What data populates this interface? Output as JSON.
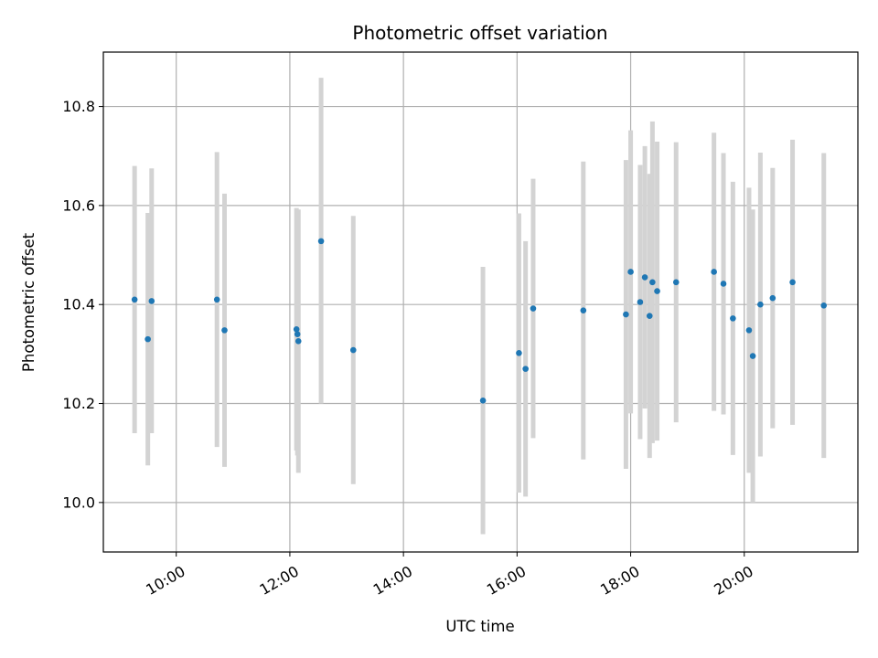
{
  "chart_data": {
    "type": "scatter",
    "title": "Photometric offset variation",
    "xlabel": "UTC time",
    "ylabel": "Photometric offset",
    "x_unit": "hours (UTC)",
    "xlim": [
      "08:43",
      "22:00"
    ],
    "ylim": [
      9.9,
      10.91
    ],
    "x_ticks": [
      "10:00",
      "12:00",
      "14:00",
      "16:00",
      "18:00",
      "20:00"
    ],
    "y_ticks": [
      "10.0",
      "10.2",
      "10.4",
      "10.6",
      "10.8"
    ],
    "grid": true,
    "colors": {
      "points": "#1f77b4",
      "errorbars": "#d3d3d3",
      "grid": "#b0b0b0"
    },
    "points": [
      {
        "x": "09:16",
        "y": 10.41,
        "err_low": 10.14,
        "err_high": 10.68
      },
      {
        "x": "09:30",
        "y": 10.33,
        "err_low": 10.075,
        "err_high": 10.585
      },
      {
        "x": "09:34",
        "y": 10.407,
        "err_low": 10.14,
        "err_high": 10.675
      },
      {
        "x": "10:43",
        "y": 10.41,
        "err_low": 10.112,
        "err_high": 10.708
      },
      {
        "x": "10:51",
        "y": 10.348,
        "err_low": 10.072,
        "err_high": 10.624
      },
      {
        "x": "12:07",
        "y": 10.35,
        "err_low": 10.105,
        "err_high": 10.595
      },
      {
        "x": "12:08",
        "y": 10.34,
        "err_low": 10.095,
        "err_high": 10.585
      },
      {
        "x": "12:09",
        "y": 10.326,
        "err_low": 10.06,
        "err_high": 10.592
      },
      {
        "x": "12:33",
        "y": 10.528,
        "err_low": 10.2,
        "err_high": 10.858
      },
      {
        "x": "13:07",
        "y": 10.308,
        "err_low": 10.037,
        "err_high": 10.579
      },
      {
        "x": "15:24",
        "y": 10.206,
        "err_low": 9.936,
        "err_high": 10.476
      },
      {
        "x": "16:02",
        "y": 10.302,
        "err_low": 10.02,
        "err_high": 10.584
      },
      {
        "x": "16:09",
        "y": 10.27,
        "err_low": 10.012,
        "err_high": 10.528
      },
      {
        "x": "16:17",
        "y": 10.392,
        "err_low": 10.13,
        "err_high": 10.654
      },
      {
        "x": "17:10",
        "y": 10.388,
        "err_low": 10.087,
        "err_high": 10.689
      },
      {
        "x": "17:55",
        "y": 10.38,
        "err_low": 10.068,
        "err_high": 10.692
      },
      {
        "x": "18:00",
        "y": 10.466,
        "err_low": 10.18,
        "err_high": 10.752
      },
      {
        "x": "18:10",
        "y": 10.405,
        "err_low": 10.128,
        "err_high": 10.682
      },
      {
        "x": "18:15",
        "y": 10.455,
        "err_low": 10.19,
        "err_high": 10.72
      },
      {
        "x": "18:20",
        "y": 10.377,
        "err_low": 10.09,
        "err_high": 10.664
      },
      {
        "x": "18:23",
        "y": 10.445,
        "err_low": 10.12,
        "err_high": 10.77
      },
      {
        "x": "18:28",
        "y": 10.427,
        "err_low": 10.125,
        "err_high": 10.729
      },
      {
        "x": "18:48",
        "y": 10.445,
        "err_low": 10.162,
        "err_high": 10.728
      },
      {
        "x": "19:28",
        "y": 10.466,
        "err_low": 10.185,
        "err_high": 10.747
      },
      {
        "x": "19:38",
        "y": 10.442,
        "err_low": 10.178,
        "err_high": 10.706
      },
      {
        "x": "19:48",
        "y": 10.372,
        "err_low": 10.096,
        "err_high": 10.648
      },
      {
        "x": "20:05",
        "y": 10.348,
        "err_low": 10.06,
        "err_high": 10.636
      },
      {
        "x": "20:09",
        "y": 10.296,
        "err_low": 10.0,
        "err_high": 10.592
      },
      {
        "x": "20:17",
        "y": 10.4,
        "err_low": 10.093,
        "err_high": 10.707
      },
      {
        "x": "20:30",
        "y": 10.413,
        "err_low": 10.15,
        "err_high": 10.676
      },
      {
        "x": "20:51",
        "y": 10.445,
        "err_low": 10.157,
        "err_high": 10.733
      },
      {
        "x": "21:24",
        "y": 10.398,
        "err_low": 10.09,
        "err_high": 10.706
      }
    ]
  }
}
